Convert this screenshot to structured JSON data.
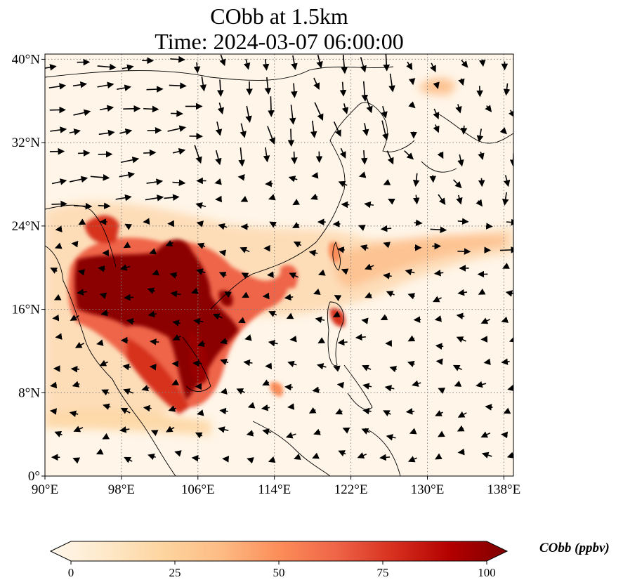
{
  "title": {
    "line1": "CObb at 1.5km",
    "line2": "Time: 2024-03-07 06:00:00"
  },
  "map": {
    "projection": "PlateCarree",
    "lon_range": [
      90,
      139
    ],
    "lat_range": [
      0,
      40.5
    ],
    "gridlines": "dotted",
    "lon_ticks": [
      {
        "value": 90,
        "label": "90°E"
      },
      {
        "value": 98,
        "label": "98°E"
      },
      {
        "value": 106,
        "label": "106°E"
      },
      {
        "value": 114,
        "label": "114°E"
      },
      {
        "value": 122,
        "label": "122°E"
      },
      {
        "value": 130,
        "label": "130°E"
      },
      {
        "value": 138,
        "label": "138°E"
      }
    ],
    "lat_ticks": [
      {
        "value": 0,
        "label": "0°"
      },
      {
        "value": 8,
        "label": "8°N"
      },
      {
        "value": 16,
        "label": "16°N"
      },
      {
        "value": 24,
        "label": "24°N"
      },
      {
        "value": 32,
        "label": "32°N"
      },
      {
        "value": 40,
        "label": "40°N"
      }
    ],
    "overlay": "wind vectors (black arrows)"
  },
  "colorbar": {
    "label": "CObb (ppbv)",
    "colormap": "OrRd",
    "colors": [
      "#fff7ec",
      "#fee8c8",
      "#fdd49e",
      "#fdbb84",
      "#fc8d59",
      "#ef6548",
      "#d7301f",
      "#b30000",
      "#7f0000"
    ],
    "range": [
      0,
      100
    ],
    "extend": "both",
    "ticks": [
      {
        "value": 0,
        "label": "0"
      },
      {
        "value": 25,
        "label": "25"
      },
      {
        "value": 50,
        "label": "50"
      },
      {
        "value": 75,
        "label": "75"
      },
      {
        "value": 100,
        "label": "100"
      }
    ]
  }
}
